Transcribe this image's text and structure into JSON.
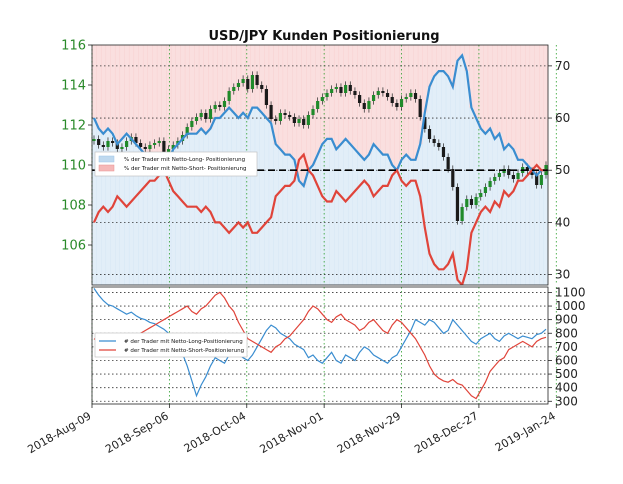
{
  "chart_data": {
    "type": "line",
    "title": "USD/JPY Kunden Positionierung",
    "x_tick_labels": [
      "2018-Aug-09",
      "2018-Sep-06",
      "2018-Oct-04",
      "2018-Nov-01",
      "2018-Nov-29",
      "2018-Dec-27",
      "2019-Jan-24"
    ],
    "top_panel": {
      "price_axis": {
        "side": "left",
        "ylim": [
          104,
          116
        ],
        "ticks": [
          "106",
          "108",
          "110",
          "112",
          "114",
          "116"
        ]
      },
      "percent_axis": {
        "side": "right",
        "ylim": [
          28,
          74
        ],
        "ticks": [
          "30",
          "40",
          "50",
          "60",
          "70"
        ]
      },
      "reference_line": 50,
      "legend": {
        "position": "left",
        "entries": [
          {
            "label": "% der Trader mit Netto-Long- Positionierung",
            "color": "#bfd9ef"
          },
          {
            "label": "% der Trader mit Netto-Short- Positionierung",
            "color": "#f5b8b8"
          }
        ]
      },
      "series": [
        {
          "kind": "candlestick_close",
          "axis": "left",
          "values": [
            111.3,
            111.0,
            110.9,
            111.2,
            111.1,
            110.8,
            110.9,
            111.2,
            111.4,
            111.1,
            110.9,
            110.8,
            111.0,
            111.1,
            111.2,
            110.6,
            110.8,
            111.0,
            111.2,
            111.5,
            111.9,
            112.2,
            112.4,
            112.6,
            112.3,
            112.8,
            113.0,
            112.9,
            113.2,
            113.7,
            113.9,
            114.1,
            114.3,
            113.8,
            114.5,
            114.0,
            113.8,
            113.0,
            112.3,
            112.2,
            112.6,
            112.5,
            112.4,
            112.1,
            112.3,
            112.0,
            112.5,
            112.8,
            113.2,
            113.4,
            113.6,
            113.8,
            113.9,
            113.6,
            114.0,
            113.7,
            113.5,
            113.1,
            112.8,
            113.2,
            113.5,
            113.7,
            113.6,
            113.4,
            113.1,
            112.9,
            113.3,
            113.4,
            113.6,
            113.3,
            112.4,
            111.8,
            111.3,
            111.1,
            110.9,
            110.4,
            109.8,
            108.9,
            107.2,
            107.9,
            108.3,
            108.0,
            108.4,
            108.6,
            108.9,
            109.2,
            109.4,
            109.6,
            109.8,
            109.5,
            109.3,
            109.6,
            109.9,
            109.7,
            109.5,
            109.0,
            109.5,
            110.0
          ]
        },
        {
          "kind": "percent_long",
          "axis": "right",
          "color": "#3a8dd0",
          "values": [
            60,
            58,
            57,
            58,
            57,
            55,
            56,
            57,
            56,
            55,
            54,
            53,
            52,
            52,
            51,
            50,
            52,
            54,
            55,
            56,
            57,
            57,
            57,
            58,
            57,
            58,
            60,
            60,
            61,
            62,
            61,
            60,
            61,
            60,
            62,
            62,
            61,
            60,
            59,
            55,
            54,
            53,
            53,
            52,
            48,
            47,
            50,
            51,
            53,
            55,
            56,
            56,
            54,
            55,
            56,
            55,
            54,
            53,
            52,
            53,
            55,
            54,
            53,
            53,
            51,
            50,
            52,
            53,
            52,
            52,
            55,
            61,
            66,
            68,
            69,
            69,
            68,
            66,
            71,
            72,
            69,
            62,
            60,
            58,
            57,
            58,
            56,
            57,
            54,
            55,
            54,
            52,
            52,
            51,
            50,
            49,
            50,
            50
          ]
        },
        {
          "kind": "percent_short",
          "axis": "right",
          "color": "#e0443a",
          "values": [
            40,
            42,
            43,
            42,
            43,
            45,
            44,
            43,
            44,
            45,
            46,
            47,
            48,
            48,
            49,
            50,
            48,
            46,
            45,
            44,
            43,
            43,
            43,
            42,
            43,
            42,
            40,
            40,
            39,
            38,
            39,
            40,
            39,
            40,
            38,
            38,
            39,
            40,
            41,
            45,
            46,
            47,
            47,
            48,
            52,
            53,
            50,
            49,
            47,
            45,
            44,
            44,
            46,
            45,
            44,
            45,
            46,
            47,
            48,
            47,
            45,
            46,
            47,
            47,
            49,
            50,
            48,
            47,
            48,
            48,
            45,
            39,
            34,
            32,
            31,
            31,
            32,
            34,
            29,
            28,
            31,
            38,
            40,
            42,
            43,
            42,
            44,
            43,
            46,
            45,
            46,
            48,
            48,
            49,
            50,
            51,
            50,
            50
          ]
        }
      ]
    },
    "bottom_panel": {
      "axis": {
        "side": "right",
        "ylim": [
          280,
          1140
        ],
        "ticks": [
          "300",
          "400",
          "500",
          "600",
          "700",
          "800",
          "900",
          "1000",
          "1100"
        ]
      },
      "legend": {
        "position": "left",
        "entries": [
          {
            "label": "# der Trader mit Netto-Long-Positionierung",
            "color": "#3a8dd0"
          },
          {
            "label": "# der Trader mit Netto-Short-Positionierung",
            "color": "#e0443a"
          }
        ]
      },
      "series": [
        {
          "name": "# der Trader mit Netto-Long-Positionierung",
          "color": "#3a8dd0",
          "values": [
            1130,
            1080,
            1040,
            1010,
            1000,
            980,
            960,
            940,
            955,
            930,
            910,
            900,
            880,
            870,
            850,
            830,
            800,
            760,
            700,
            650,
            560,
            450,
            340,
            420,
            480,
            560,
            620,
            600,
            580,
            640,
            700,
            650,
            620,
            600,
            640,
            700,
            760,
            820,
            860,
            840,
            800,
            780,
            760,
            720,
            700,
            680,
            620,
            640,
            600,
            580,
            620,
            660,
            600,
            580,
            640,
            620,
            600,
            660,
            700,
            680,
            640,
            620,
            600,
            580,
            620,
            640,
            700,
            760,
            820,
            900,
            880,
            860,
            900,
            880,
            840,
            800,
            820,
            900,
            860,
            820,
            780,
            740,
            720,
            760,
            780,
            800,
            760,
            740,
            780,
            800,
            780,
            760,
            780,
            770,
            760,
            790,
            800,
            830
          ]
        },
        {
          "name": "# der Trader mit Netto-Short-Positionierung",
          "color": "#e0443a",
          "values": [
            760,
            740,
            720,
            700,
            680,
            700,
            720,
            740,
            760,
            780,
            800,
            820,
            840,
            860,
            880,
            900,
            920,
            940,
            960,
            980,
            1000,
            960,
            940,
            980,
            1000,
            1040,
            1080,
            1100,
            1060,
            1000,
            960,
            880,
            820,
            760,
            740,
            720,
            700,
            680,
            660,
            700,
            720,
            760,
            780,
            820,
            860,
            900,
            960,
            1000,
            980,
            940,
            900,
            880,
            920,
            940,
            900,
            880,
            860,
            820,
            840,
            880,
            900,
            860,
            820,
            800,
            860,
            900,
            880,
            840,
            800,
            760,
            700,
            640,
            560,
            500,
            470,
            450,
            440,
            460,
            430,
            420,
            380,
            340,
            320,
            380,
            440,
            520,
            560,
            600,
            620,
            680,
            700,
            720,
            740,
            720,
            700,
            740,
            760,
            770
          ]
        }
      ]
    }
  }
}
